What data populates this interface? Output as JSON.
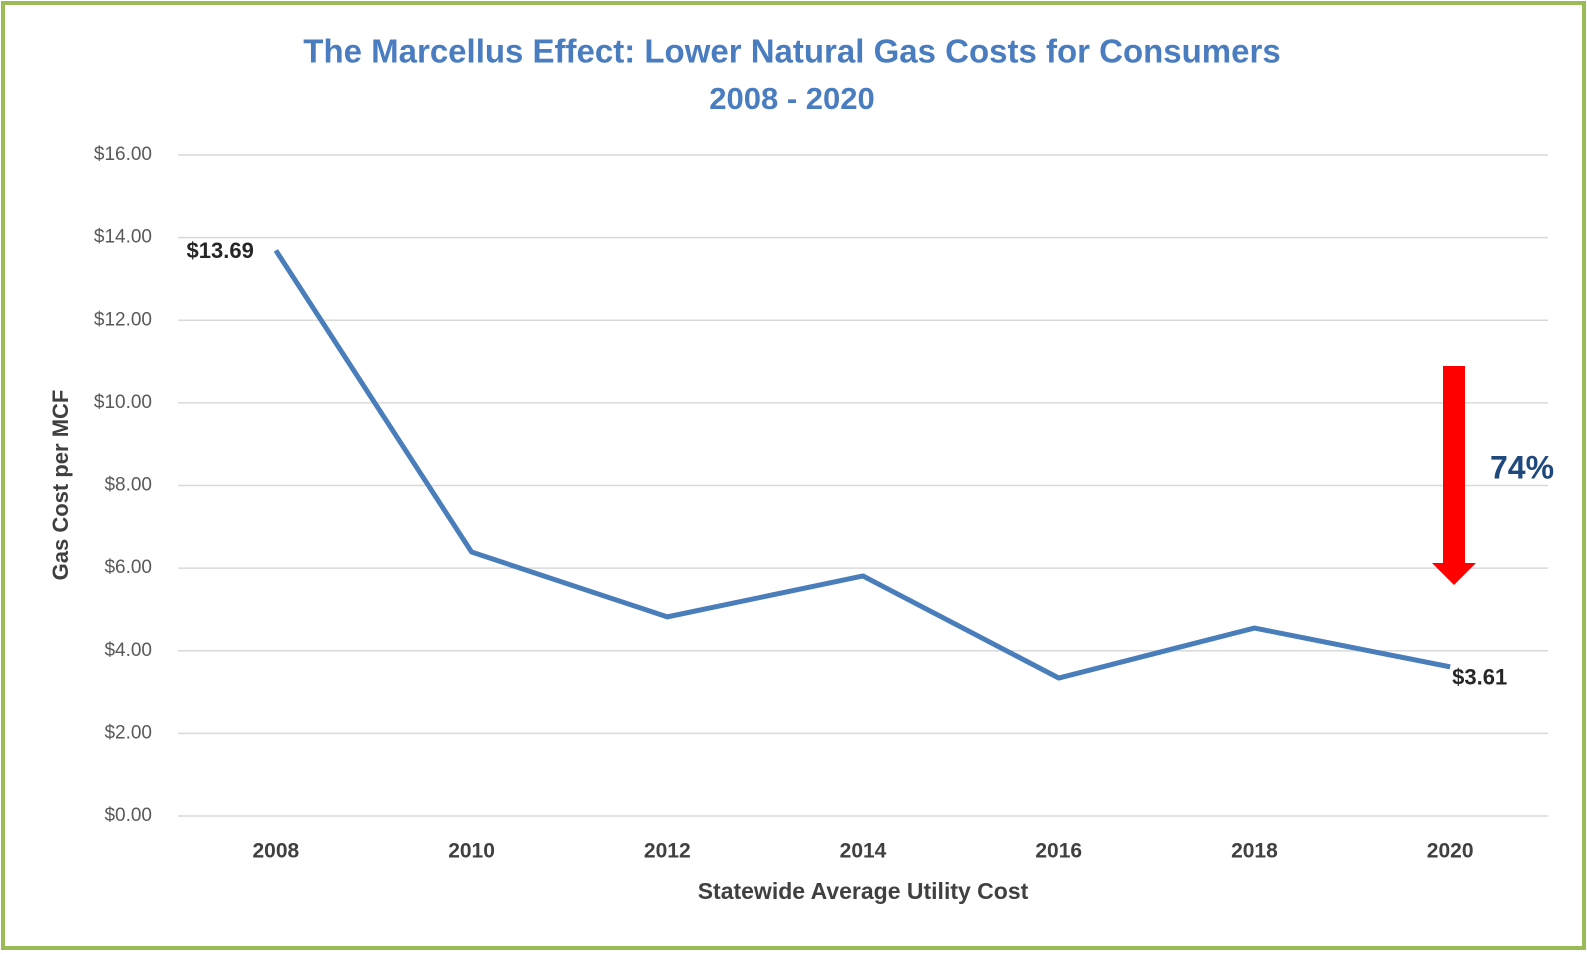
{
  "chart_data": {
    "type": "line",
    "title": "The Marcellus Effect: Lower Natural Gas Costs for Consumers",
    "subtitle": "2008 - 2020",
    "x_label": "Statewide Average Utility Cost",
    "y_label": "Gas Cost per MCF",
    "categories": [
      "2008",
      "2010",
      "2012",
      "2014",
      "2016",
      "2018",
      "2020"
    ],
    "series": [
      {
        "name": "Statewide Average Utility Cost",
        "color": "#4a7ebb",
        "values": [
          13.69,
          6.39,
          4.82,
          5.81,
          3.34,
          4.55,
          3.61
        ],
        "value_labels": [
          "$13.69",
          null,
          null,
          null,
          null,
          null,
          "$3.61"
        ]
      }
    ],
    "ylim": [
      0,
      16
    ],
    "yticks": [
      {
        "value": 0,
        "label": "$0.00"
      },
      {
        "value": 2,
        "label": "$2.00"
      },
      {
        "value": 4,
        "label": "$4.00"
      },
      {
        "value": 6,
        "label": "$6.00"
      },
      {
        "value": 8,
        "label": "$8.00"
      },
      {
        "value": 10,
        "label": "$10.00"
      },
      {
        "value": 12,
        "label": "$12.00"
      },
      {
        "value": 14,
        "label": "$14.00"
      },
      {
        "value": 16,
        "label": "$16.00"
      }
    ],
    "grid": true,
    "annotations": [
      "74%"
    ]
  }
}
